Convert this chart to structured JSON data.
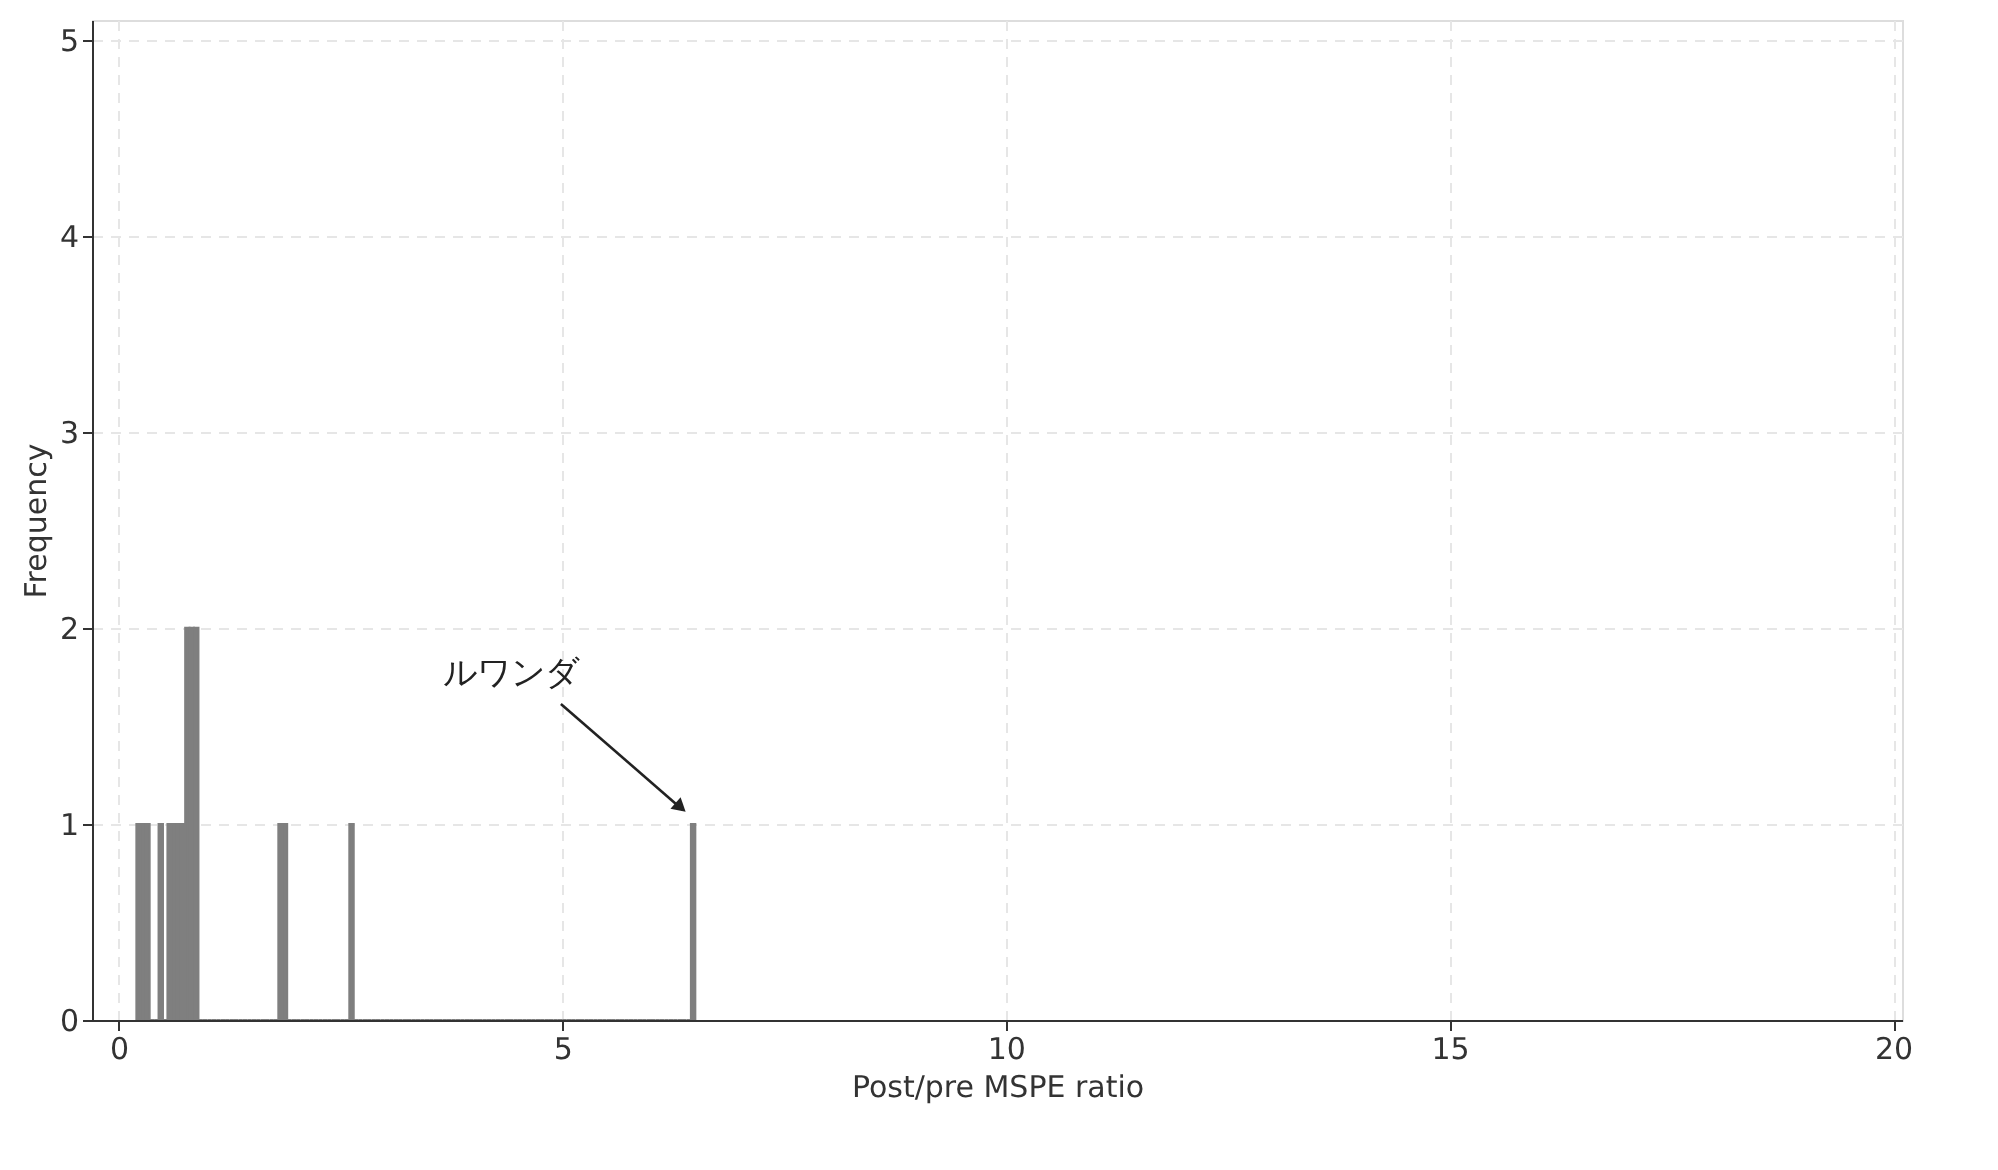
{
  "chart_data": {
    "type": "histogram",
    "xlabel": "Post/pre MSPE ratio",
    "ylabel": "Frequency",
    "bins": [
      0.2,
      0.25,
      0.3,
      0.35,
      0.4,
      0.45,
      0.5,
      0.55,
      0.6,
      0.65,
      0.7,
      0.75,
      0.8,
      0.85,
      0.9,
      0.95,
      1.0,
      1.05,
      1.1,
      1.15,
      1.2,
      1.25,
      1.3,
      1.35,
      1.4,
      1.45,
      1.5,
      1.55,
      1.6,
      1.65,
      1.7,
      1.75,
      1.8,
      1.85,
      1.9,
      1.95,
      2.0,
      2.05,
      2.1,
      2.15,
      2.2,
      2.25,
      2.3,
      2.35,
      2.4,
      2.45,
      2.5,
      2.55,
      2.6,
      2.65,
      2.7,
      2.75,
      2.8,
      2.85,
      2.9,
      2.95,
      3.0,
      3.05,
      3.1,
      3.15,
      3.2,
      3.25,
      3.3,
      3.35,
      3.4,
      3.45,
      3.5,
      3.55,
      3.6,
      3.65,
      3.7,
      3.75,
      3.8,
      3.85,
      3.9,
      3.95,
      4.0,
      4.05,
      4.1,
      4.15,
      4.2,
      4.25,
      4.3,
      4.35,
      4.4,
      4.45,
      4.5,
      4.55,
      4.6,
      4.65,
      4.7,
      4.75,
      4.8,
      4.85,
      4.9,
      4.95,
      5.0,
      5.05,
      5.1,
      5.15,
      5.2,
      5.25,
      5.3,
      5.35,
      5.4,
      5.45,
      5.5,
      5.55,
      5.6,
      5.65,
      5.7,
      5.75,
      5.8,
      5.85,
      5.9,
      5.95,
      6.0,
      6.05,
      6.1,
      6.15,
      6.2,
      6.25,
      6.3,
      6.35,
      6.4,
      6.45,
      6.5
    ],
    "values": [
      1,
      1,
      1,
      0,
      0,
      1,
      0,
      1,
      1,
      1,
      1,
      2,
      2,
      2,
      0,
      0,
      0,
      0,
      0,
      0,
      0,
      0,
      0,
      0,
      0,
      0,
      0,
      0,
      0,
      0,
      0,
      0,
      1,
      1,
      0,
      0,
      0,
      0,
      0,
      0,
      0,
      0,
      0,
      0,
      0,
      0,
      0,
      0,
      1,
      0,
      0,
      0,
      0,
      0,
      0,
      0,
      0,
      0,
      0,
      0,
      0,
      0,
      0,
      0,
      0,
      0,
      0,
      0,
      0,
      0,
      0,
      0,
      0,
      0,
      0,
      0,
      0,
      0,
      0,
      0,
      0,
      0,
      0,
      0,
      0,
      0,
      0,
      0,
      0,
      0,
      0,
      0,
      0,
      0,
      0,
      0,
      0,
      0,
      0,
      0,
      0,
      0,
      0,
      0,
      0,
      0,
      0,
      0,
      0,
      0,
      0,
      0,
      0,
      0,
      0,
      0,
      0,
      0,
      0,
      0,
      0,
      0,
      0,
      0,
      0,
      1
    ],
    "color": "#7f7f7f",
    "xlim": [
      -0.3,
      20.1
    ],
    "xticks": [
      0,
      5,
      10,
      15,
      20
    ],
    "ylim": [
      0,
      5.1
    ],
    "yticks": [
      0,
      1,
      2,
      3,
      4,
      5
    ],
    "grid": true,
    "annotations": [
      {
        "text": "ルワンダ",
        "x": 6.45,
        "y": 1
      }
    ]
  }
}
